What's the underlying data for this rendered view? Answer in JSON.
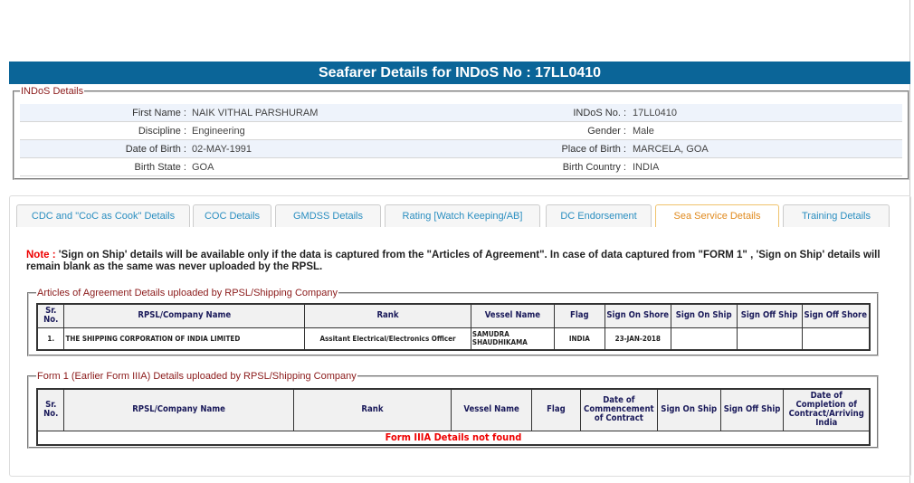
{
  "header": {
    "title": "Seafarer Details for INDoS No : 17LL0410"
  },
  "indos": {
    "legend": "INDoS Details",
    "rows": [
      {
        "l1": "First Name :",
        "v1": "NAIK VITHAL PARSHURAM",
        "l2": "INDoS No. :",
        "v2": "17LL0410"
      },
      {
        "l1": "Discipline :",
        "v1": "Engineering",
        "l2": "Gender :",
        "v2": "Male"
      },
      {
        "l1": "Date of Birth :",
        "v1": "02-MAY-1991",
        "l2": "Place of Birth :",
        "v2": "MARCELA, GOA"
      },
      {
        "l1": "Birth State :",
        "v1": "GOA",
        "l2": "Birth Country :",
        "v2": "INDIA"
      }
    ]
  },
  "tabs": [
    "CDC and \"CoC as Cook\" Details",
    "COC Details",
    "GMDSS Details",
    "Rating [Watch Keeping/AB]",
    "DC Endorsement",
    "Sea Service Details",
    "Training Details"
  ],
  "active_tab": "Sea Service Details",
  "note": {
    "label": "Note :",
    "text": " 'Sign on Ship' details will be available only if the data is captured from the \"Articles of Agreement\". In case of data captured from \"FORM 1\" , 'Sign on Ship' details will remain blank as the same was never uploaded by the RPSL."
  },
  "articles": {
    "legend": "Articles of Agreement Details uploaded by RPSL/Shipping Company",
    "headers": [
      "Sr. No.",
      "RPSL/Company Name",
      "Rank",
      "Vessel Name",
      "Flag",
      "Sign On Shore",
      "Sign On Ship",
      "Sign Off Ship",
      "Sign Off Shore"
    ],
    "rows": [
      [
        "1.",
        "THE SHIPPING CORPORATION OF INDIA LIMITED",
        "Assitant Electrical/Electronics Officer",
        "SAMUDRA SHAUDHIKAMA",
        "INDIA",
        "23-JAN-2018",
        "",
        "",
        ""
      ]
    ]
  },
  "form1": {
    "legend": "Form 1 (Earlier Form IIIA) Details uploaded by RPSL/Shipping Company",
    "headers": [
      "Sr. No.",
      "RPSL/Company Name",
      "Rank",
      "Vessel Name",
      "Flag",
      "Date of Commencement of Contract",
      "Sign On Ship",
      "Sign Off Ship",
      "Date of Completion of Contract/Arriving India"
    ],
    "empty": "Form IIIA Details not found"
  }
}
